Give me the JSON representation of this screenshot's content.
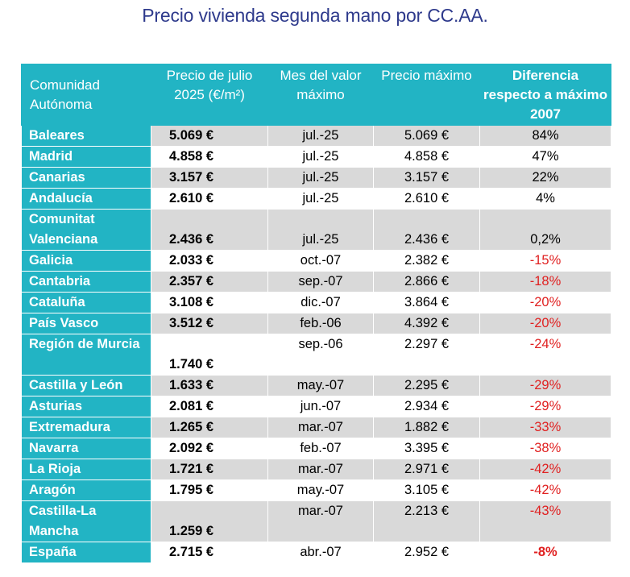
{
  "title": "Precio vivienda segunda mano por CC.AA.",
  "headers": {
    "region": "Comunidad Autónoma",
    "price": "Precio de julio 2025 (€/m²)",
    "month_max": "Mes del valor máximo",
    "max_price": "Precio máximo",
    "diff": "Diferencia respecto a máximo 2007"
  },
  "colors": {
    "accent": "#22b4c4",
    "title": "#2e3a8c",
    "negative": "#e02020",
    "stripe": "#d9d9d9"
  },
  "rows": [
    {
      "region": "Baleares",
      "price": "5.069 €",
      "month": "jul.-25",
      "max": "5.069 €",
      "diff": "84%",
      "negative": false
    },
    {
      "region": "Madrid",
      "price": "4.858 €",
      "month": "jul.-25",
      "max": "4.858 €",
      "diff": "47%",
      "negative": false
    },
    {
      "region": "Canarias",
      "price": "3.157 €",
      "month": "jul.-25",
      "max": "3.157 €",
      "diff": "22%",
      "negative": false
    },
    {
      "region": "Andalucía",
      "price": "2.610 €",
      "month": "jul.-25",
      "max": "2.610 €",
      "diff": "4%",
      "negative": false
    },
    {
      "region": "Comunitat Valenciana",
      "price": "2.436 €",
      "month": "jul.-25",
      "max": "2.436 €",
      "diff": "0,2%",
      "negative": false
    },
    {
      "region": "Galicia",
      "price": "2.033 €",
      "month": "oct.-07",
      "max": "2.382 €",
      "diff": "-15%",
      "negative": true
    },
    {
      "region": "Cantabria",
      "price": "2.357 €",
      "month": "sep.-07",
      "max": "2.866 €",
      "diff": "-18%",
      "negative": true
    },
    {
      "region": "Cataluña",
      "price": "3.108 €",
      "month": "dic.-07",
      "max": "3.864 €",
      "diff": "-20%",
      "negative": true
    },
    {
      "region": "País Vasco",
      "price": "3.512 €",
      "month": "feb.-06",
      "max": "4.392 €",
      "diff": "-20%",
      "negative": true
    },
    {
      "region": "Región de Murcia",
      "price": "1.740 €",
      "month": "sep.-06",
      "max": "2.297 €",
      "diff": "-24%",
      "negative": true
    },
    {
      "region": "Castilla y León",
      "price": "1.633 €",
      "month": "may.-07",
      "max": "2.295 €",
      "diff": "-29%",
      "negative": true
    },
    {
      "region": "Asturias",
      "price": "2.081 €",
      "month": "jun.-07",
      "max": "2.934 €",
      "diff": "-29%",
      "negative": true
    },
    {
      "region": "Extremadura",
      "price": "1.265 €",
      "month": "mar.-07",
      "max": "1.882 €",
      "diff": "-33%",
      "negative": true
    },
    {
      "region": "Navarra",
      "price": "2.092 €",
      "month": "feb.-07",
      "max": "3.395 €",
      "diff": "-38%",
      "negative": true
    },
    {
      "region": "La Rioja",
      "price": "1.721 €",
      "month": "mar.-07",
      "max": "2.971 €",
      "diff": "-42%",
      "negative": true
    },
    {
      "region": "Aragón",
      "price": "1.795 €",
      "month": "may.-07",
      "max": "3.105 €",
      "diff": "-42%",
      "negative": true
    },
    {
      "region": "Castilla-La Mancha",
      "price": "1.259 €",
      "month": "mar.-07",
      "max": "2.213 €",
      "diff": "-43%",
      "negative": true
    },
    {
      "region": "España",
      "price": "2.715 €",
      "month": "abr.-07",
      "max": "2.952 €",
      "diff": "-8%",
      "negative": true
    }
  ]
}
